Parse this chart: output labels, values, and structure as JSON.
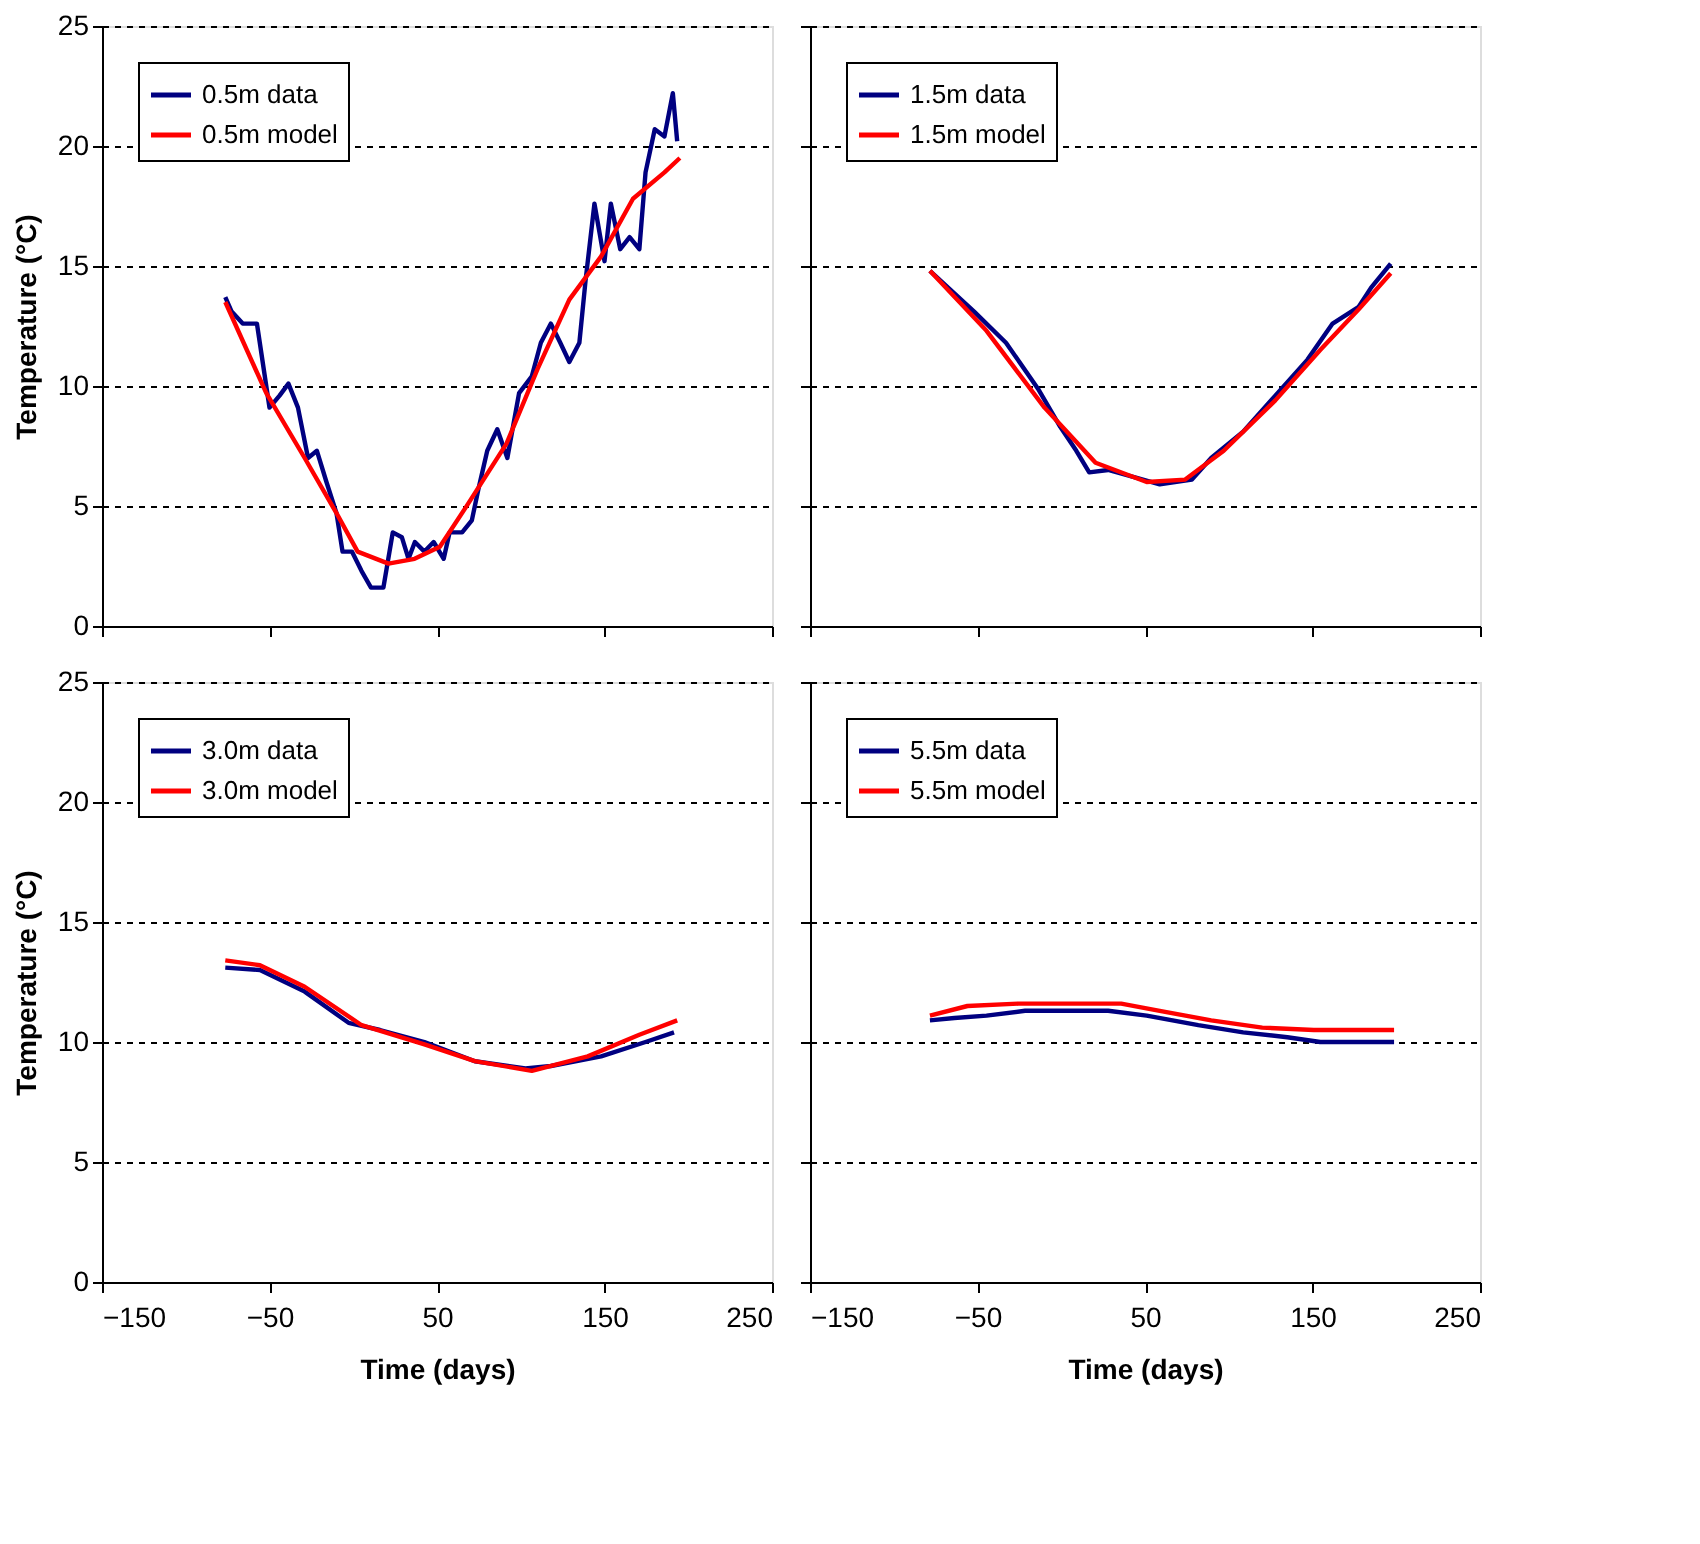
{
  "chart_data": [
    {
      "type": "line",
      "ylabel": "Temperature (°C)",
      "xlim": [
        -150,
        250
      ],
      "xticks": [
        -150,
        -50,
        50,
        150,
        250
      ],
      "ylim": [
        0,
        25
      ],
      "yticks": [
        0,
        5,
        10,
        15,
        20,
        25
      ],
      "grid": "y",
      "legend": "top left",
      "tick_labels": "y",
      "series": [
        {
          "name": "0.5m data",
          "color": "#000080",
          "x": [
            -76.4,
            -72.6,
            -66,
            -57.5,
            -50,
            -44,
            -38.7,
            -33,
            -27,
            -21.7,
            -16,
            -10,
            -6.4,
            -0.8,
            4.9,
            10.6,
            18,
            23.6,
            29,
            33,
            36.8,
            42.5,
            48,
            54,
            57.5,
            65,
            70.8,
            74.7,
            80,
            86,
            92,
            99,
            106.6,
            112,
            118,
            123.6,
            129,
            135,
            138.7,
            144,
            150,
            153.8,
            159.4,
            165,
            170.8,
            174.5,
            180,
            185.8,
            190.8,
            193.4
          ],
          "values": [
            13.7,
            13.1,
            12.6,
            12.6,
            9.1,
            9.6,
            10.1,
            9.1,
            7.0,
            7.3,
            6.0,
            4.7,
            3.1,
            3.1,
            2.3,
            1.6,
            1.6,
            3.9,
            3.7,
            2.8,
            3.5,
            3.1,
            3.5,
            2.8,
            3.9,
            3.9,
            4.4,
            5.7,
            7.3,
            8.2,
            7.0,
            9.7,
            10.4,
            11.8,
            12.6,
            11.8,
            11.0,
            11.8,
            14.4,
            17.6,
            15.2,
            17.6,
            15.7,
            16.2,
            15.7,
            18.9,
            20.7,
            20.4,
            22.2,
            20.2
          ]
        },
        {
          "name": "0.5m model",
          "color": "#ff0000",
          "x": [
            -76.4,
            -51.9,
            -29,
            -10,
            2.6,
            21,
            36.6,
            51.7,
            66.8,
            91.5,
            110,
            129,
            148,
            167,
            185.8,
            195
          ],
          "values": [
            13.5,
            9.7,
            7.0,
            4.7,
            3.1,
            2.6,
            2.8,
            3.3,
            4.9,
            7.6,
            10.7,
            13.6,
            15.4,
            17.8,
            18.9,
            19.5
          ]
        }
      ]
    },
    {
      "type": "line",
      "xlim": [
        -150,
        250
      ],
      "xticks": [
        -150,
        -50,
        50,
        150,
        250
      ],
      "ylim": [
        0,
        25
      ],
      "yticks": [
        0,
        5,
        10,
        15,
        20,
        25
      ],
      "grid": "y",
      "legend": "top left",
      "tick_labels": false,
      "series": [
        {
          "name": "1.5m data",
          "color": "#000080",
          "x": [
            -78.4,
            -52,
            -33,
            -14,
            -0.6,
            9,
            16.7,
            28,
            43.5,
            58.8,
            78,
            89.5,
            108.6,
            127.8,
            147,
            162,
            177.6,
            185,
            196.7
          ],
          "values": [
            14.8,
            13.1,
            11.8,
            9.9,
            8.3,
            7.3,
            6.4,
            6.5,
            6.2,
            5.9,
            6.1,
            7.0,
            8.1,
            9.6,
            11.1,
            12.6,
            13.3,
            14.1,
            15.1
          ]
        },
        {
          "name": "1.5m model",
          "color": "#ff0000",
          "x": [
            -78.4,
            -44.6,
            -10,
            20.5,
            51,
            74,
            97,
            127.8,
            154.6,
            177.6,
            196.7
          ],
          "values": [
            14.8,
            12.3,
            9.1,
            6.8,
            6.0,
            6.1,
            7.3,
            9.4,
            11.5,
            13.2,
            14.7
          ]
        }
      ]
    },
    {
      "type": "line",
      "xlabel": "Time (days)",
      "ylabel": "Temperature (°C)",
      "xlim": [
        -150,
        250
      ],
      "xticks": [
        -150,
        -50,
        50,
        150,
        250
      ],
      "ylim": [
        0,
        25
      ],
      "yticks": [
        0,
        5,
        10,
        15,
        20,
        25
      ],
      "grid": "y",
      "legend": "top left",
      "series": [
        {
          "name": "3.0m data",
          "color": "#000080",
          "x": [
            -76.4,
            -55.7,
            -29,
            -2.8,
            16,
            42.5,
            72.6,
            102.8,
            118,
            148,
            174.5,
            191.5
          ],
          "values": [
            13.1,
            13.0,
            12.1,
            10.8,
            10.5,
            10.0,
            9.2,
            8.9,
            9.0,
            9.4,
            10.0,
            10.4
          ]
        },
        {
          "name": "3.0m model",
          "color": "#ff0000",
          "x": [
            -76.4,
            -55.7,
            -29,
            5,
            42.5,
            72.6,
            106.6,
            140,
            170.8,
            193.4
          ],
          "values": [
            13.4,
            13.2,
            12.3,
            10.7,
            9.9,
            9.2,
            8.8,
            9.4,
            10.3,
            10.9
          ]
        }
      ]
    },
    {
      "type": "line",
      "xlabel": "Time (days)",
      "xlim": [
        -150,
        250
      ],
      "xticks": [
        -150,
        -50,
        50,
        150,
        250
      ],
      "ylim": [
        0,
        25
      ],
      "yticks": [
        0,
        5,
        10,
        15,
        20,
        25
      ],
      "grid": "y",
      "legend": "top left",
      "tick_labels": "x",
      "series": [
        {
          "name": "5.5m data",
          "color": "#000080",
          "x": [
            -78.4,
            -63.8,
            -44.6,
            -21.6,
            28,
            51,
            81.8,
            108.6,
            135,
            154.6,
            198.7
          ],
          "values": [
            10.9,
            11.0,
            11.1,
            11.3,
            11.3,
            11.1,
            10.7,
            10.4,
            10.2,
            10.0,
            10.0
          ]
        },
        {
          "name": "5.5m model",
          "color": "#ff0000",
          "x": [
            -78.4,
            -56,
            -25.5,
            35.8,
            58.8,
            89.5,
            120,
            150.8,
            198.7
          ],
          "values": [
            11.1,
            11.5,
            11.6,
            11.6,
            11.3,
            10.9,
            10.6,
            10.5,
            10.5
          ]
        }
      ]
    }
  ]
}
